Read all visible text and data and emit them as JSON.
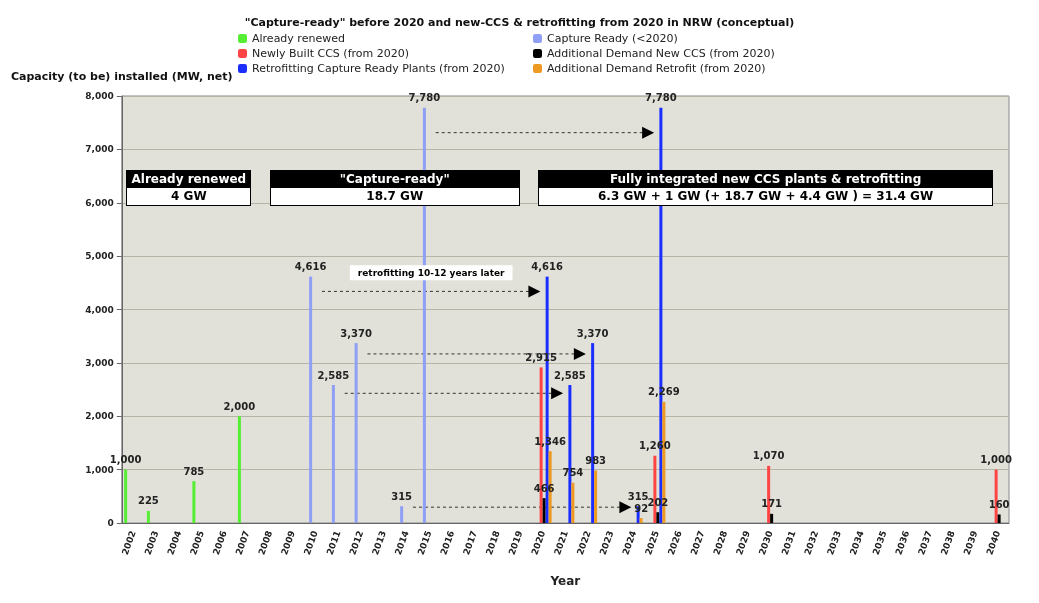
{
  "chart_data": {
    "type": "bar",
    "title": "\"Capture-ready\" before 2020 and new-CCS & retrofitting from 2020 in NRW (conceptual)",
    "xlabel": "Year",
    "ylabel": "Capacity (to be) installed (MW, net)",
    "categories": [
      "2002",
      "2003",
      "2004",
      "2005",
      "2006",
      "2007",
      "2008",
      "2009",
      "2010",
      "2011",
      "2012",
      "2013",
      "2014",
      "2015",
      "2016",
      "2017",
      "2018",
      "2019",
      "2020",
      "2021",
      "2022",
      "2023",
      "2024",
      "2025",
      "2026",
      "2027",
      "2028",
      "2029",
      "2030",
      "2031",
      "2032",
      "2033",
      "2034",
      "2035",
      "2036",
      "2037",
      "2038",
      "2039",
      "2040"
    ],
    "series": [
      {
        "name": "Already renewed",
        "color": "#55ee33",
        "values": [
          1000,
          225,
          null,
          785,
          null,
          2000,
          null,
          null,
          null,
          null,
          null,
          null,
          null,
          null,
          null,
          null,
          null,
          null,
          null,
          null,
          null,
          null,
          null,
          null,
          null,
          null,
          null,
          null,
          null,
          null,
          null,
          null,
          null,
          null,
          null,
          null,
          null,
          null,
          null
        ],
        "value_labels": [
          "1,000",
          "225",
          null,
          "785",
          null,
          "2,000",
          null,
          null,
          null,
          null,
          null,
          null,
          null,
          null,
          null,
          null,
          null,
          null,
          null,
          null,
          null,
          null,
          null,
          null,
          null,
          null,
          null,
          null,
          null,
          null,
          null,
          null,
          null,
          null,
          null,
          null,
          null,
          null,
          null
        ]
      },
      {
        "name": "Capture Ready (<2020)",
        "color": "#8f9ff5",
        "values": [
          null,
          null,
          null,
          null,
          null,
          null,
          null,
          null,
          4616,
          2585,
          3370,
          null,
          315,
          7780,
          null,
          null,
          null,
          null,
          null,
          null,
          null,
          null,
          null,
          null,
          null,
          null,
          null,
          null,
          null,
          null,
          null,
          null,
          null,
          null,
          null,
          null,
          null,
          null,
          null
        ],
        "value_labels": [
          null,
          null,
          null,
          null,
          null,
          null,
          null,
          null,
          "4,616",
          "2,585",
          "3,370",
          null,
          "315",
          "7,780",
          null,
          null,
          null,
          null,
          null,
          null,
          null,
          null,
          null,
          null,
          null,
          null,
          null,
          null,
          null,
          null,
          null,
          null,
          null,
          null,
          null,
          null,
          null,
          null,
          null
        ]
      },
      {
        "name": "Newly Built CCS (from 2020)",
        "color": "#ff4444",
        "values": [
          null,
          null,
          null,
          null,
          null,
          null,
          null,
          null,
          null,
          null,
          null,
          null,
          null,
          null,
          null,
          null,
          null,
          null,
          2915,
          null,
          null,
          null,
          null,
          1260,
          null,
          null,
          null,
          null,
          1070,
          null,
          null,
          null,
          null,
          null,
          null,
          null,
          null,
          null,
          1000
        ],
        "value_labels": [
          null,
          null,
          null,
          null,
          null,
          null,
          null,
          null,
          null,
          null,
          null,
          null,
          null,
          null,
          null,
          null,
          null,
          null,
          "2,915",
          null,
          null,
          null,
          null,
          "1,260",
          null,
          null,
          null,
          null,
          "1,070",
          null,
          null,
          null,
          null,
          null,
          null,
          null,
          null,
          null,
          "1,000"
        ]
      },
      {
        "name": "Additional Demand New CCS (from 2020)",
        "color": "#000000",
        "values": [
          null,
          null,
          null,
          null,
          null,
          null,
          null,
          null,
          null,
          null,
          null,
          null,
          null,
          null,
          null,
          null,
          null,
          null,
          466,
          null,
          null,
          null,
          null,
          202,
          null,
          null,
          null,
          null,
          171,
          null,
          null,
          null,
          null,
          null,
          null,
          null,
          null,
          null,
          160
        ],
        "value_labels": [
          null,
          null,
          null,
          null,
          null,
          null,
          null,
          null,
          null,
          null,
          null,
          null,
          null,
          null,
          null,
          null,
          null,
          null,
          "466",
          null,
          null,
          null,
          null,
          "202",
          null,
          null,
          null,
          null,
          "171",
          null,
          null,
          null,
          null,
          null,
          null,
          null,
          null,
          null,
          "160"
        ]
      },
      {
        "name": "Retrofitting Capture Ready Plants (from 2020)",
        "color": "#1a2eff",
        "values": [
          null,
          null,
          null,
          null,
          null,
          null,
          null,
          null,
          null,
          null,
          null,
          null,
          null,
          null,
          null,
          null,
          null,
          null,
          4616,
          2585,
          3370,
          null,
          315,
          7780,
          null,
          null,
          null,
          null,
          null,
          null,
          null,
          null,
          null,
          null,
          null,
          null,
          null,
          null,
          null
        ],
        "value_labels": [
          null,
          null,
          null,
          null,
          null,
          null,
          null,
          null,
          null,
          null,
          null,
          null,
          null,
          null,
          null,
          null,
          null,
          null,
          "4,616",
          "2,585",
          "3,370",
          null,
          "315",
          "7,780",
          null,
          null,
          null,
          null,
          null,
          null,
          null,
          null,
          null,
          null,
          null,
          null,
          null,
          null,
          null
        ]
      },
      {
        "name": "Additional Demand Retrofit (from 2020)",
        "color": "#ee9922",
        "values": [
          null,
          null,
          null,
          null,
          null,
          null,
          null,
          null,
          null,
          null,
          null,
          null,
          null,
          null,
          null,
          null,
          null,
          null,
          1346,
          754,
          983,
          null,
          92,
          2269,
          null,
          null,
          null,
          null,
          null,
          null,
          null,
          null,
          null,
          null,
          null,
          null,
          null,
          null,
          null
        ],
        "value_labels": [
          null,
          null,
          null,
          null,
          null,
          null,
          null,
          null,
          null,
          null,
          null,
          null,
          null,
          null,
          null,
          null,
          null,
          null,
          "1,346",
          "754",
          "983",
          null,
          "92",
          "2,269",
          null,
          null,
          null,
          null,
          null,
          null,
          null,
          null,
          null,
          null,
          null,
          null,
          null,
          null,
          null
        ]
      }
    ],
    "ylim": [
      0,
      8000
    ],
    "yticks": [
      {
        "value": 0,
        "label": "0"
      },
      {
        "value": 1000,
        "label": "1,000"
      },
      {
        "value": 2000,
        "label": "2,000"
      },
      {
        "value": 3000,
        "label": "3,000"
      },
      {
        "value": 4000,
        "label": "4,000"
      },
      {
        "value": 5000,
        "label": "5,000"
      },
      {
        "value": 6000,
        "label": "6,000"
      },
      {
        "value": 7000,
        "label": "7,000"
      },
      {
        "value": 8000,
        "label": "8,000"
      }
    ],
    "grid": "y",
    "legend": "top",
    "annotations": [
      "Already renewed",
      "4 GW",
      "\"Capture-ready\"",
      "18.7 GW",
      "Fully integrated new CCS plants & retrofitting",
      "6.3 GW + 1 GW (+ 18.7 GW + 4.4 GW ) = 31.4 GW",
      "retrofitting 10-12 years later"
    ]
  }
}
